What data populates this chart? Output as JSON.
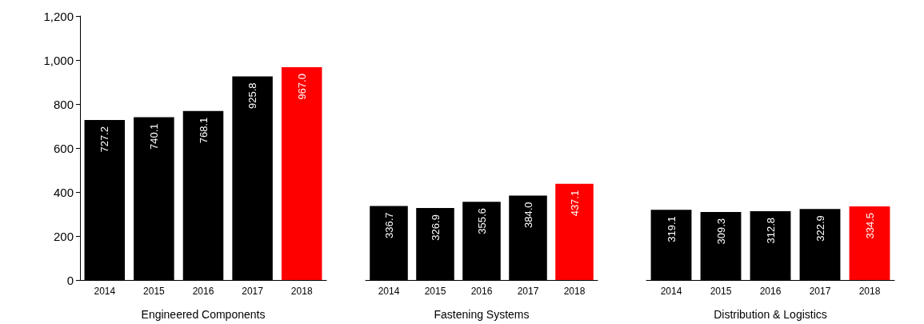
{
  "chart_data": [
    {
      "type": "bar",
      "xlabel": "Engineered Components",
      "categories": [
        "2014",
        "2015",
        "2016",
        "2017",
        "2018"
      ],
      "values": [
        727.2,
        740.1,
        768.1,
        925.8,
        967.0
      ],
      "value_labels": [
        "727.2",
        "740.1",
        "768.1",
        "925.8",
        "967.0"
      ],
      "colors": [
        "#000000",
        "#000000",
        "#000000",
        "#000000",
        "#ff0000"
      ],
      "ylim": [
        0,
        1200
      ],
      "yticks": [
        0,
        200,
        400,
        600,
        800,
        {
          "value": 1000,
          "label": "1,000"
        },
        {
          "value": 1200,
          "label": "1,200"
        }
      ]
    },
    {
      "type": "bar",
      "xlabel": "Fastening Systems",
      "categories": [
        "2014",
        "2015",
        "2016",
        "2017",
        "2018"
      ],
      "values": [
        336.7,
        326.9,
        355.6,
        384.0,
        437.1
      ],
      "value_labels": [
        "336.7",
        "326.9",
        "355.6",
        "384.0",
        "437.1"
      ],
      "colors": [
        "#000000",
        "#000000",
        "#000000",
        "#000000",
        "#ff0000"
      ],
      "ylim": [
        0,
        1200
      ],
      "tick_labels": "x"
    },
    {
      "type": "bar",
      "xlabel": "Distribution & Logistics",
      "categories": [
        "2014",
        "2015",
        "2016",
        "2017",
        "2018"
      ],
      "values": [
        319.1,
        309.3,
        312.8,
        322.9,
        334.5
      ],
      "value_labels": [
        "319.1",
        "309.3",
        "312.8",
        "322.9",
        "334.5"
      ],
      "colors": [
        "#000000",
        "#000000",
        "#000000",
        "#000000",
        "#ff0000"
      ],
      "ylim": [
        0,
        1200
      ],
      "tick_labels": "x"
    }
  ]
}
